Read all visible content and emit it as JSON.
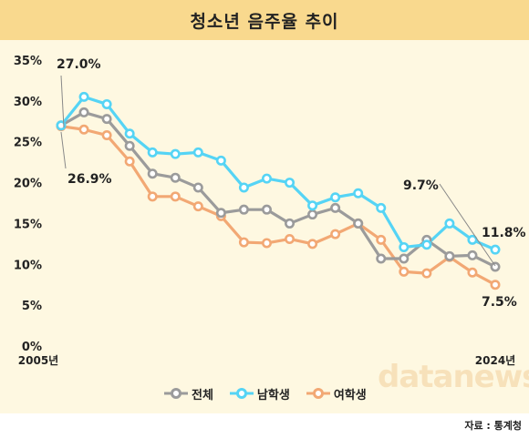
{
  "title": "청소년 음주율 추이",
  "source": "자료 : 통계청",
  "watermark": "datanews",
  "colors": {
    "total": "#9b9b9b",
    "male": "#55d4f5",
    "female": "#f2a874",
    "panel": "#fef8e1",
    "title_bg": "#f9d98e"
  },
  "chart_data": {
    "type": "line",
    "title": "청소년 음주율 추이",
    "x_start_label": "2005년",
    "x_end_label": "2024년",
    "x": [
      2005,
      2006,
      2007,
      2008,
      2009,
      2010,
      2011,
      2012,
      2013,
      2014,
      2015,
      2016,
      2017,
      2018,
      2019,
      2020,
      2021,
      2022,
      2023,
      2024
    ],
    "y_ticks": [
      "0%",
      "5%",
      "10%",
      "15%",
      "20%",
      "25%",
      "30%",
      "35%"
    ],
    "ylim": [
      0,
      35
    ],
    "grid": false,
    "legend_position": "bottom",
    "series": [
      {
        "name": "전체",
        "key": "total",
        "values": [
          27.0,
          28.6,
          27.8,
          24.5,
          21.1,
          20.6,
          19.4,
          16.3,
          16.7,
          16.7,
          15.0,
          16.1,
          16.9,
          15.0,
          10.7,
          10.7,
          13.0,
          11.0,
          11.1,
          9.7
        ]
      },
      {
        "name": "남학생",
        "key": "male",
        "values": [
          27.0,
          30.5,
          29.6,
          26.0,
          23.7,
          23.5,
          23.7,
          22.7,
          19.4,
          20.5,
          20.0,
          17.2,
          18.2,
          18.7,
          16.9,
          12.1,
          12.4,
          15.0,
          13.0,
          11.8
        ]
      },
      {
        "name": "여학생",
        "key": "female",
        "values": [
          26.9,
          26.5,
          25.8,
          22.6,
          18.3,
          18.3,
          17.1,
          15.9,
          12.7,
          12.6,
          13.1,
          12.5,
          13.7,
          15.0,
          13.0,
          9.1,
          8.9,
          10.9,
          9.0,
          7.5
        ]
      }
    ],
    "annotations": [
      {
        "text": "27.0%",
        "series": "total",
        "index": 0
      },
      {
        "text": "26.9%",
        "series": "female",
        "index": 0
      },
      {
        "text": "9.7%",
        "series": "total",
        "index": 19
      },
      {
        "text": "11.8%",
        "series": "male",
        "index": 19
      },
      {
        "text": "7.5%",
        "series": "female",
        "index": 19
      }
    ]
  }
}
